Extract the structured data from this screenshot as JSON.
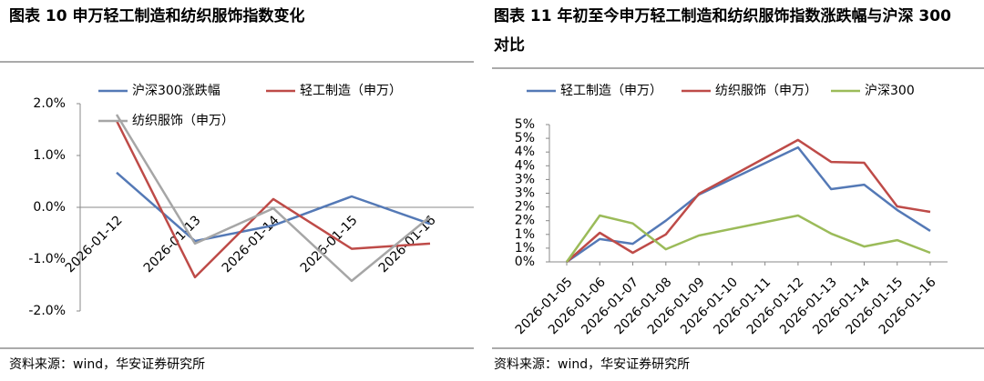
{
  "chart_data": [
    {
      "type": "line",
      "title": "图表 10 申万轻工制造和纺织服饰指数变化",
      "source": "资料来源：wind，华安证券研究所",
      "categories": [
        "2026-01-12",
        "2026-01-13",
        "2026-01-14",
        "2026-01-15",
        "2026-01-16"
      ],
      "series": [
        {
          "name": "沪深300涨跌幅",
          "color": "#5479b6",
          "values": [
            0.67,
            -0.65,
            -0.35,
            0.21,
            -0.32
          ]
        },
        {
          "name": "轻工制造（申万）",
          "color": "#be4b48",
          "values": [
            1.67,
            -1.35,
            0.16,
            -0.8,
            -0.7
          ]
        },
        {
          "name": "纺织服饰（申万）",
          "color": "#a6a6a6",
          "values": [
            1.79,
            -0.7,
            -0.02,
            -1.42,
            -0.18
          ]
        }
      ],
      "ylim": [
        -2,
        2
      ],
      "yticks": [
        {
          "value": -2,
          "label": "-2.0%"
        },
        {
          "value": -1,
          "label": "-1.0%"
        },
        {
          "value": 0,
          "label": "0.0%"
        },
        {
          "value": 1,
          "label": "1.0%"
        },
        {
          "value": 2,
          "label": "2.0%"
        }
      ],
      "legend": "top"
    },
    {
      "type": "line",
      "title": "图表 11 年初至今申万轻工制造和纺织服饰指数涨跌幅与沪深 300 对比",
      "source": "资料来源：wind，华安证券研究所",
      "x": [
        "2026-01-05",
        "2026-01-06",
        "2026-01-07",
        "2026-01-08",
        "2026-01-09",
        "2026-01-12",
        "2026-01-13",
        "2026-01-14",
        "2026-01-15",
        "2026-01-16"
      ],
      "series": [
        {
          "name": "轻工制造（申万）",
          "color": "#5479b6",
          "values": [
            0,
            0.83,
            0.66,
            1.5,
            2.45,
            4.17,
            2.65,
            2.81,
            1.89,
            1.13
          ]
        },
        {
          "name": "纺织服饰（申万）",
          "color": "#be4b48",
          "values": [
            0,
            1.06,
            0.33,
            1.0,
            2.48,
            4.44,
            3.64,
            3.61,
            2.02,
            1.82
          ]
        },
        {
          "name": "沪深300",
          "color": "#9bbb59",
          "values": [
            0,
            1.69,
            1.4,
            0.46,
            0.96,
            1.69,
            1.03,
            0.56,
            0.79,
            0.33
          ]
        }
      ],
      "xlim": [
        "2026-01-05",
        "2026-01-16"
      ],
      "xticks": [
        "2026-01-05",
        "2026-01-06",
        "2026-01-07",
        "2026-01-08",
        "2026-01-09",
        "2026-01-10",
        "2026-01-11",
        "2026-01-12",
        "2026-01-13",
        "2026-01-14",
        "2026-01-15",
        "2026-01-16"
      ],
      "ylim": [
        0,
        5
      ],
      "yticks": [
        {
          "value": 0,
          "label": "0%"
        },
        {
          "value": 0.5,
          "label": "1%"
        },
        {
          "value": 1,
          "label": "1%"
        },
        {
          "value": 1.5,
          "label": "2%"
        },
        {
          "value": 2,
          "label": "2%"
        },
        {
          "value": 2.5,
          "label": "3%"
        },
        {
          "value": 3,
          "label": "3%"
        },
        {
          "value": 3.5,
          "label": "4%"
        },
        {
          "value": 4,
          "label": "4%"
        },
        {
          "value": 4.5,
          "label": "5%"
        },
        {
          "value": 5,
          "label": "5%"
        }
      ],
      "legend": "top"
    }
  ]
}
